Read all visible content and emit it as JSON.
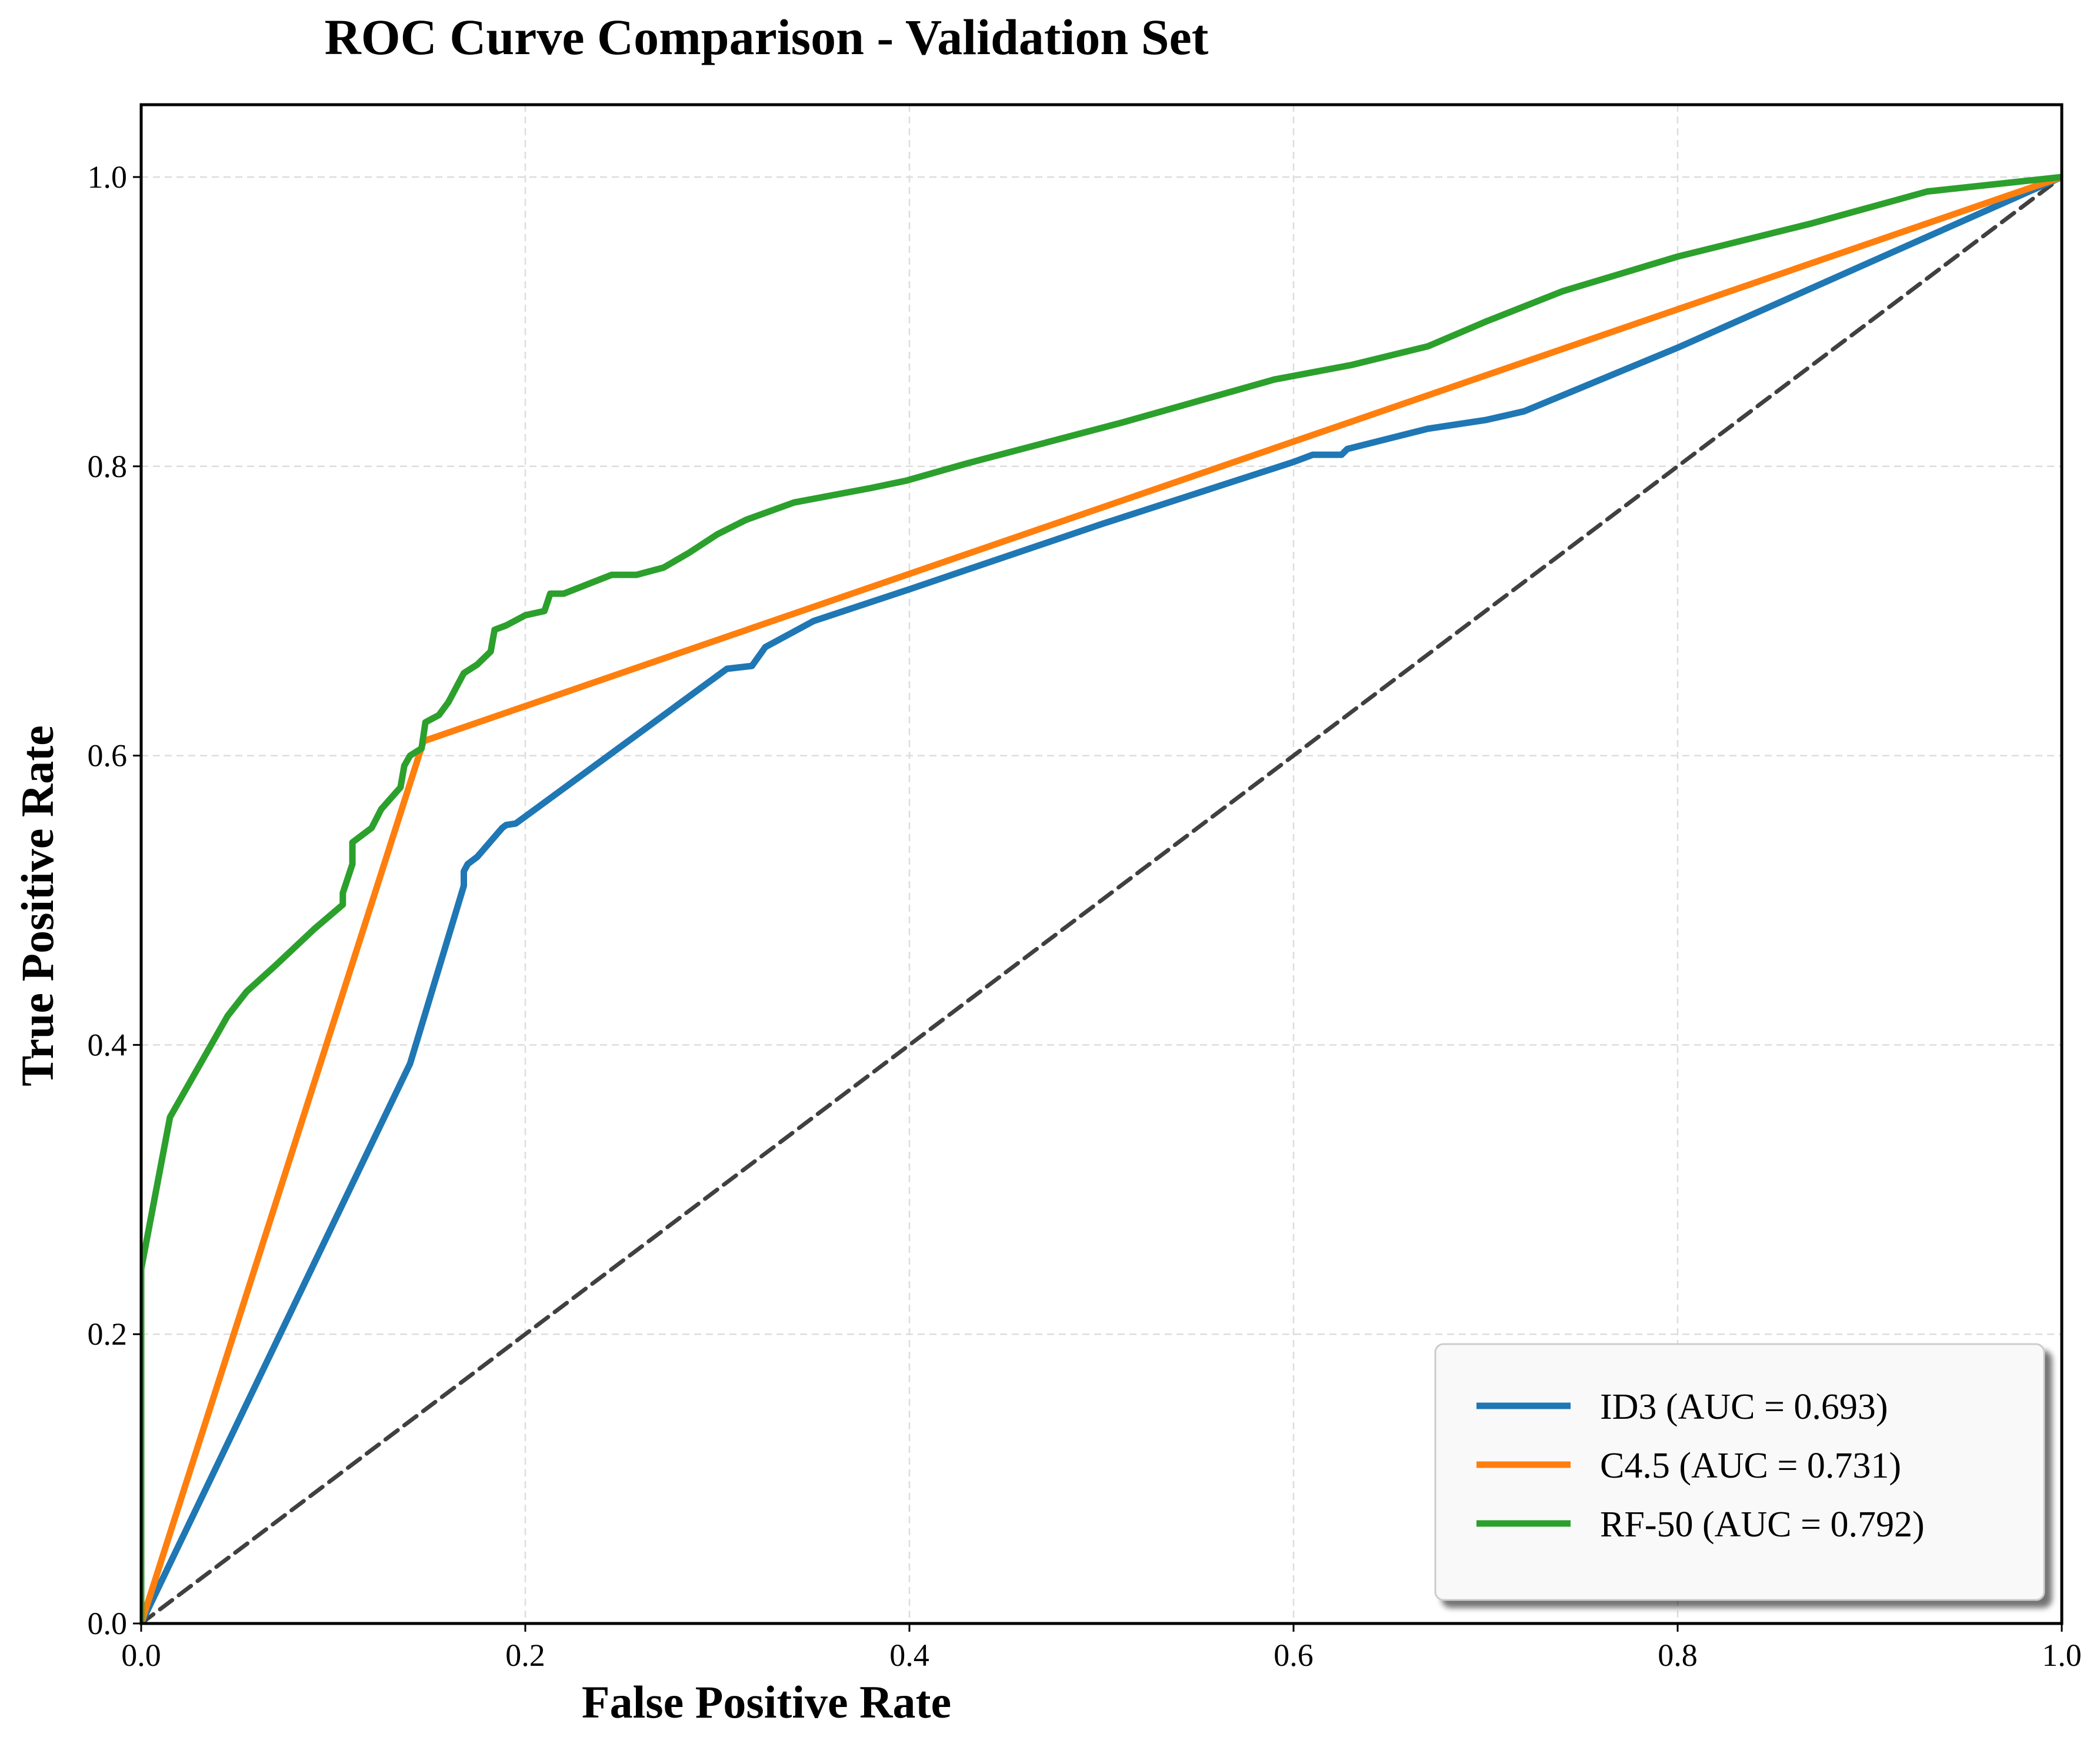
{
  "chart_data": {
    "type": "line",
    "title": "ROC Curve Comparison - Validation Set",
    "xlabel": "False Positive Rate",
    "ylabel": "True Positive Rate",
    "xlim": [
      0,
      1
    ],
    "ylim": [
      0,
      1.05
    ],
    "xticks": [
      "0.0",
      "0.2",
      "0.4",
      "0.6",
      "0.8",
      "1.0"
    ],
    "yticks": [
      "0.0",
      "0.2",
      "0.4",
      "0.6",
      "0.8",
      "1.0"
    ],
    "grid": true,
    "legend_position": "lower-right",
    "series": [
      {
        "name": "ID3 (AUC = 0.693)",
        "color": "#1f77b4",
        "x": [
          0,
          0.14,
          0.168,
          0.168,
          0.17,
          0.175,
          0.188,
          0.19,
          0.195,
          0.305,
          0.318,
          0.325,
          0.35,
          0.4,
          0.5,
          0.6,
          0.61,
          0.625,
          0.628,
          0.67,
          0.7,
          0.71,
          0.72,
          0.8,
          0.9,
          1.0
        ],
        "y": [
          0,
          0.387,
          0.51,
          0.52,
          0.525,
          0.53,
          0.55,
          0.552,
          0.553,
          0.66,
          0.662,
          0.675,
          0.693,
          0.715,
          0.76,
          0.803,
          0.808,
          0.808,
          0.812,
          0.826,
          0.832,
          0.835,
          0.838,
          0.882,
          0.941,
          1.0
        ]
      },
      {
        "name": "C4.5 (AUC = 0.731)",
        "color": "#ff7f0e",
        "x": [
          0,
          0.147,
          1.0
        ],
        "y": [
          0,
          0.61,
          1.0
        ]
      },
      {
        "name": "RF-50 (AUC = 0.792)",
        "color": "#2ca02c",
        "x": [
          0,
          0.0,
          0.015,
          0.03,
          0.045,
          0.055,
          0.07,
          0.09,
          0.105,
          0.105,
          0.11,
          0.11,
          0.12,
          0.125,
          0.133,
          0.135,
          0.137,
          0.14,
          0.146,
          0.148,
          0.155,
          0.16,
          0.168,
          0.175,
          0.182,
          0.184,
          0.19,
          0.2,
          0.21,
          0.213,
          0.22,
          0.245,
          0.25,
          0.258,
          0.272,
          0.285,
          0.3,
          0.315,
          0.34,
          0.36,
          0.38,
          0.398,
          0.43,
          0.47,
          0.51,
          0.55,
          0.59,
          0.63,
          0.67,
          0.7,
          0.74,
          0.8,
          0.87,
          0.93,
          1.0
        ],
        "y": [
          0,
          0.245,
          0.35,
          0.385,
          0.42,
          0.437,
          0.455,
          0.48,
          0.497,
          0.505,
          0.525,
          0.54,
          0.55,
          0.563,
          0.575,
          0.578,
          0.593,
          0.6,
          0.605,
          0.623,
          0.628,
          0.637,
          0.657,
          0.663,
          0.672,
          0.687,
          0.69,
          0.697,
          0.7,
          0.712,
          0.712,
          0.725,
          0.725,
          0.725,
          0.73,
          0.74,
          0.753,
          0.763,
          0.775,
          0.78,
          0.785,
          0.79,
          0.802,
          0.816,
          0.83,
          0.845,
          0.86,
          0.87,
          0.883,
          0.9,
          0.921,
          0.945,
          0.968,
          0.99,
          1.0
        ]
      },
      {
        "name": "",
        "color": "#404040",
        "dashed": true,
        "x": [
          0,
          1
        ],
        "y": [
          0,
          1
        ]
      }
    ]
  }
}
